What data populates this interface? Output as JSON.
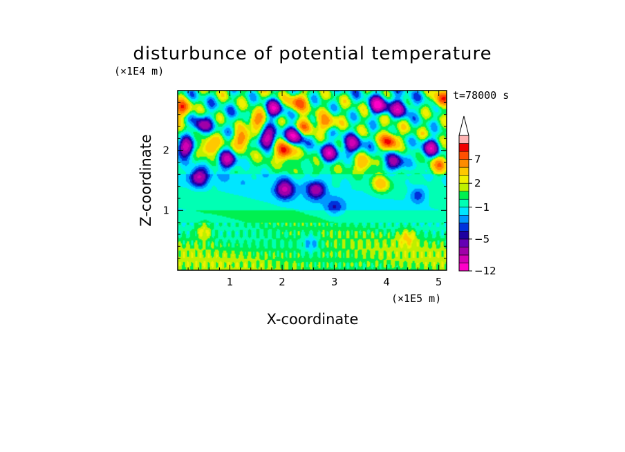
{
  "chart_data": {
    "type": "heatmap",
    "title": "disturbunce of potential temperature",
    "xlabel": "X-coordinate",
    "ylabel": "Z-coordinate",
    "x_unit": "(×1E5 m)",
    "y_unit": "(×1E4 m)",
    "time_label": "t=78000 s",
    "xlim": [
      0,
      5.15
    ],
    "ylim": [
      0,
      3.0
    ],
    "x_ticks": [
      1,
      2,
      3,
      4,
      5
    ],
    "y_ticks": [
      1,
      2
    ],
    "colorbar": {
      "labels": [
        "7",
        "2",
        "−1",
        "−5",
        "−12"
      ],
      "label_values": [
        7,
        2,
        -1,
        -5,
        -12
      ],
      "levels": [
        -12,
        -10,
        -8,
        -6,
        -5,
        -4,
        -3,
        -2,
        -1,
        0,
        1,
        2,
        3,
        5,
        7,
        9,
        11
      ],
      "colors": [
        "#ff00c8",
        "#d200b4",
        "#a000a8",
        "#6400b4",
        "#1e00a0",
        "#0032dc",
        "#0096ff",
        "#00e6ff",
        "#00ffb4",
        "#00f050",
        "#bef000",
        "#f0f000",
        "#ffc800",
        "#ff8c00",
        "#ff5000",
        "#f00000",
        "#ffb4b4"
      ],
      "extend": "max"
    },
    "features": [
      {
        "x": 2.05,
        "z": 2.0,
        "amp": 10
      },
      {
        "x": 2.25,
        "z": 2.25,
        "amp": -9
      },
      {
        "x": 2.45,
        "z": 2.4,
        "amp": 8
      },
      {
        "x": 1.7,
        "z": 2.2,
        "amp": -9
      },
      {
        "x": 1.5,
        "z": 2.5,
        "amp": 8
      },
      {
        "x": 1.25,
        "z": 2.2,
        "amp": 7
      },
      {
        "x": 0.95,
        "z": 1.85,
        "amp": -8
      },
      {
        "x": 0.6,
        "z": 2.05,
        "amp": 6
      },
      {
        "x": 0.45,
        "z": 2.4,
        "amp": -7
      },
      {
        "x": 0.15,
        "z": 2.05,
        "amp": -9
      },
      {
        "x": 0.1,
        "z": 2.7,
        "amp": 9
      },
      {
        "x": 0.4,
        "z": 1.55,
        "amp": -7
      },
      {
        "x": 2.05,
        "z": 1.35,
        "amp": -7
      },
      {
        "x": 2.65,
        "z": 1.35,
        "amp": -6
      },
      {
        "x": 2.9,
        "z": 1.95,
        "amp": -8
      },
      {
        "x": 2.85,
        "z": 2.45,
        "amp": 6
      },
      {
        "x": 3.35,
        "z": 2.1,
        "amp": -7
      },
      {
        "x": 3.55,
        "z": 1.8,
        "amp": 5
      },
      {
        "x": 4.05,
        "z": 2.15,
        "amp": 10
      },
      {
        "x": 4.15,
        "z": 1.8,
        "amp": -6
      },
      {
        "x": 3.85,
        "z": 2.75,
        "amp": -10
      },
      {
        "x": 4.25,
        "z": 2.7,
        "amp": -8
      },
      {
        "x": 4.85,
        "z": 2.05,
        "amp": -8
      },
      {
        "x": 5.0,
        "z": 1.75,
        "amp": 7
      },
      {
        "x": 5.05,
        "z": 2.85,
        "amp": 9
      },
      {
        "x": 1.85,
        "z": 2.7,
        "amp": -8
      },
      {
        "x": 2.3,
        "z": 2.8,
        "amp": 7
      },
      {
        "x": 3.9,
        "z": 1.45,
        "amp": 5
      },
      {
        "x": 4.6,
        "z": 1.25,
        "amp": -3
      },
      {
        "x": 3.0,
        "z": 1.05,
        "amp": -2.5
      },
      {
        "x": 2.55,
        "z": 0.45,
        "amp": -3
      },
      {
        "x": 0.5,
        "z": 0.65,
        "amp": 3
      },
      {
        "x": 4.4,
        "z": 0.55,
        "amp": 3
      }
    ]
  }
}
